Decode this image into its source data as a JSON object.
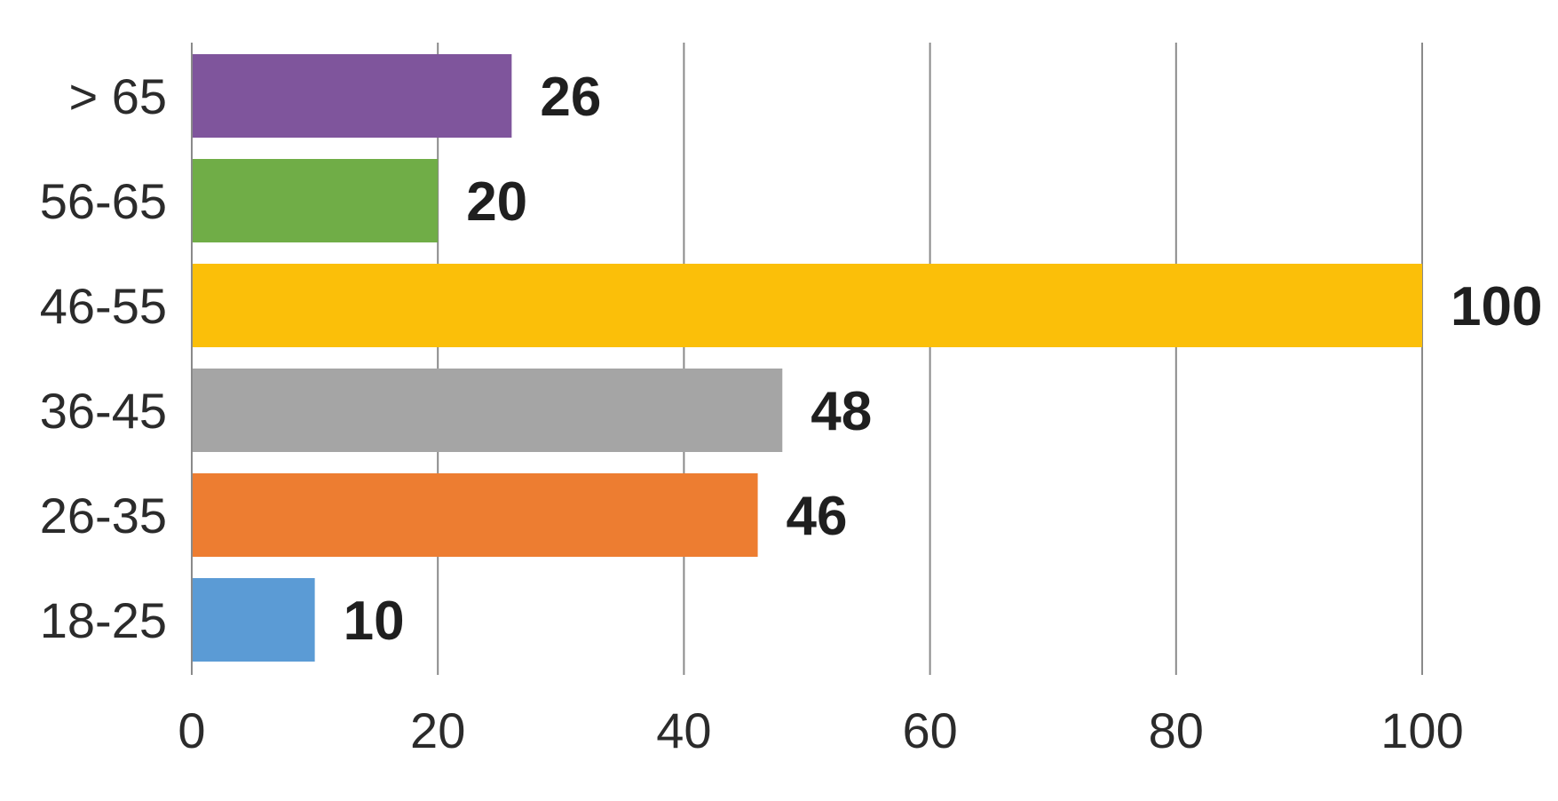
{
  "chart_data": {
    "type": "bar",
    "orientation": "horizontal",
    "categories": [
      "> 65",
      "56-65",
      "46-55",
      "36-45",
      "26-35",
      "18-25"
    ],
    "values": [
      26,
      20,
      100,
      48,
      46,
      10
    ],
    "colors": [
      "#7f559c",
      "#70ad47",
      "#fbbf09",
      "#a5a5a5",
      "#ed7d31",
      "#5b9bd5"
    ],
    "data_labels": [
      "26",
      "20",
      "100",
      "48",
      "46",
      "10"
    ],
    "xlim": [
      0,
      100
    ],
    "xticks": [
      0,
      20,
      40,
      60,
      80,
      100
    ],
    "xtick_labels": [
      "0",
      "20",
      "40",
      "60",
      "80",
      "100"
    ],
    "grid": true,
    "legend": "none",
    "title": "",
    "xlabel": "",
    "ylabel": ""
  }
}
